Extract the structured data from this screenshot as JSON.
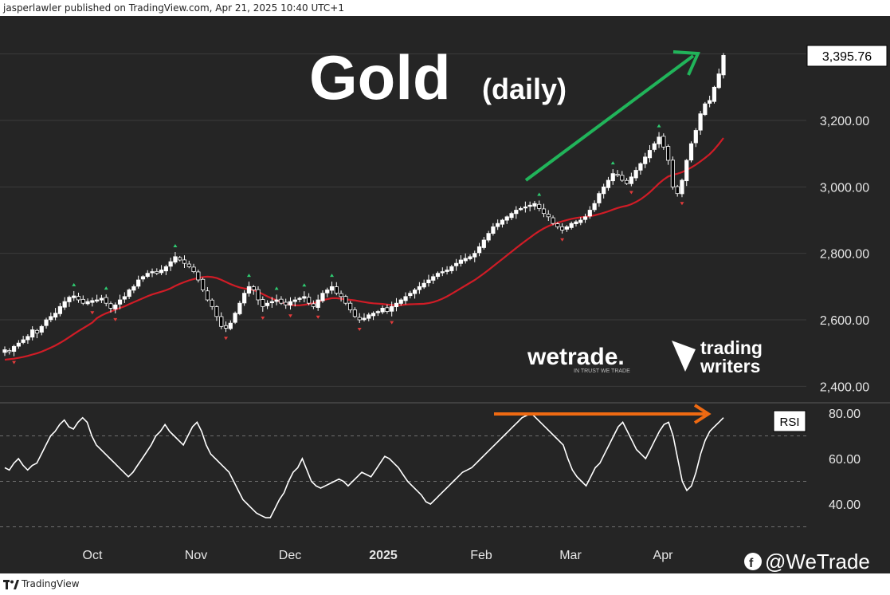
{
  "header": {
    "published_text": "jasperlawler published on TradingView.com, Apr 21, 2025 10:40 UTC+1"
  },
  "footer": {
    "tradingview_label": "TradingView"
  },
  "colors": {
    "background": "#252525",
    "bull_candle": "#ffffff",
    "bear_candle": "#000000",
    "moving_average": "#d01c26",
    "trend_arrow": "#21b45a",
    "rsi_arrow": "#ef6a12",
    "rsi_line": "#ffffff",
    "fractal_up": "#2ecc71",
    "fractal_down": "#e23b3b"
  },
  "chart_data": [
    {
      "type": "candlestick",
      "title": "Gold",
      "subtitle": "(daily)",
      "last_price_label": "3,395.76",
      "ylim": [
        2350,
        3450
      ],
      "y_ticks": [
        "2,400.00",
        "2,600.00",
        "2,800.00",
        "3,000.00",
        "3,200.00"
      ],
      "x_ticks": [
        "Oct",
        "Nov",
        "Dec",
        "2025",
        "Feb",
        "Mar",
        "Apr"
      ],
      "grid": true,
      "close": [
        2510,
        2505,
        2520,
        2530,
        2540,
        2550,
        2570,
        2560,
        2580,
        2600,
        2610,
        2620,
        2640,
        2655,
        2668,
        2672,
        2660,
        2650,
        2655,
        2658,
        2660,
        2665,
        2650,
        2635,
        2645,
        2660,
        2670,
        2690,
        2700,
        2720,
        2730,
        2740,
        2745,
        2740,
        2750,
        2760,
        2775,
        2790,
        2780,
        2770,
        2760,
        2745,
        2720,
        2690,
        2660,
        2640,
        2610,
        2580,
        2575,
        2590,
        2620,
        2650,
        2680,
        2700,
        2690,
        2660,
        2640,
        2650,
        2655,
        2660,
        2650,
        2645,
        2655,
        2660,
        2665,
        2670,
        2650,
        2640,
        2660,
        2680,
        2690,
        2700,
        2680,
        2670,
        2650,
        2630,
        2610,
        2600,
        2605,
        2615,
        2620,
        2625,
        2635,
        2625,
        2640,
        2650,
        2660,
        2670,
        2680,
        2690,
        2700,
        2710,
        2720,
        2730,
        2740,
        2745,
        2750,
        2760,
        2770,
        2780,
        2785,
        2790,
        2800,
        2820,
        2840,
        2860,
        2880,
        2890,
        2900,
        2910,
        2920,
        2930,
        2935,
        2940,
        2945,
        2950,
        2935,
        2920,
        2910,
        2890,
        2880,
        2870,
        2880,
        2890,
        2895,
        2900,
        2910,
        2930,
        2950,
        2980,
        3000,
        3020,
        3040,
        3035,
        3020,
        3010,
        3030,
        3050,
        3070,
        3090,
        3110,
        3130,
        3150,
        3120,
        3080,
        3000,
        2980,
        3020,
        3080,
        3130,
        3170,
        3220,
        3250,
        3260,
        3300,
        3340,
        3395.76
      ],
      "moving_average": {
        "period": "SMA",
        "start": 2480,
        "end": 3080
      },
      "annotations": [
        {
          "type": "trend-arrow",
          "color": "#21b45a",
          "direction": "up-right"
        }
      ]
    },
    {
      "type": "line",
      "title": "RSI",
      "ylim": [
        28,
        85
      ],
      "y_ticks": [
        "40.00",
        "60.00",
        "80.00"
      ],
      "reference_levels": [
        30,
        50,
        70
      ],
      "values": [
        56,
        55,
        58,
        60,
        57,
        55,
        57,
        58,
        62,
        66,
        70,
        72,
        75,
        77,
        74,
        73,
        76,
        78,
        76,
        70,
        66,
        64,
        62,
        60,
        58,
        56,
        54,
        52,
        54,
        57,
        60,
        63,
        66,
        70,
        72,
        75,
        72,
        70,
        68,
        66,
        70,
        74,
        76,
        72,
        66,
        62,
        60,
        58,
        56,
        54,
        50,
        46,
        42,
        40,
        38,
        36,
        35,
        34,
        34,
        38,
        42,
        45,
        50,
        54,
        56,
        60,
        55,
        50,
        48,
        47,
        48,
        49,
        50,
        51,
        50,
        48,
        50,
        52,
        54,
        53,
        52,
        55,
        58,
        61,
        60,
        58,
        56,
        53,
        50,
        48,
        46,
        44,
        41,
        40,
        42,
        44,
        46,
        48,
        50,
        52,
        54,
        55,
        56,
        58,
        60,
        62,
        64,
        66,
        68,
        70,
        72,
        74,
        76,
        78,
        79,
        80,
        78,
        76,
        74,
        72,
        70,
        68,
        66,
        60,
        55,
        52,
        50,
        48,
        52,
        56,
        58,
        62,
        66,
        70,
        74,
        76,
        72,
        68,
        64,
        62,
        60,
        64,
        68,
        72,
        75,
        76,
        70,
        60,
        50,
        46,
        48,
        54,
        62,
        68,
        72,
        74,
        76,
        78
      ]
    }
  ]
}
